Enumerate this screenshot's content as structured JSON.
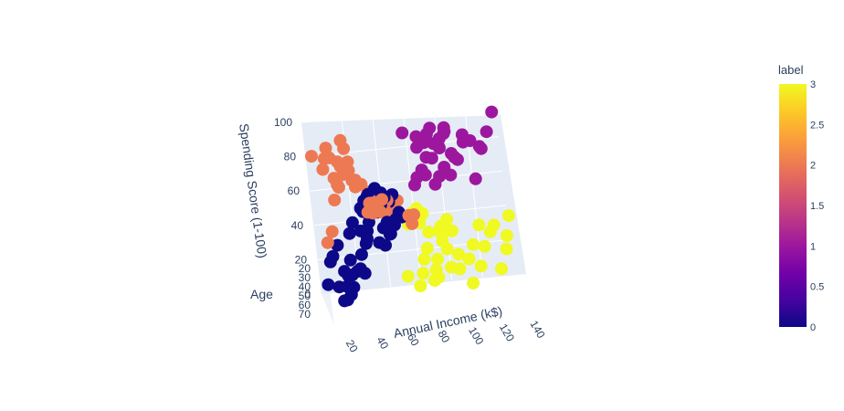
{
  "chart_data": {
    "type": "scatter",
    "title": "",
    "axes": {
      "x": {
        "label": "Annual Income (k$)",
        "ticks": [
          "20",
          "40",
          "60",
          "80",
          "100",
          "120",
          "140"
        ],
        "range": [
          15,
          140
        ]
      },
      "y": {
        "label": "Spending Score (1-100)",
        "ticks": [
          "0",
          "20",
          "40",
          "60",
          "80",
          "100"
        ],
        "range": [
          0,
          100
        ]
      },
      "z": {
        "label": "Age",
        "ticks": [
          "20",
          "30",
          "40",
          "50",
          "60",
          "70"
        ],
        "range": [
          18,
          70
        ]
      }
    },
    "colorbar": {
      "title": "label",
      "ticks": [
        "0",
        "0.5",
        "1",
        "1.5",
        "2",
        "2.5",
        "3"
      ],
      "range": [
        0,
        3
      ],
      "colors": [
        "#0d0887",
        "#46039f",
        "#7201a8",
        "#9c179e",
        "#bd3786",
        "#d8576b",
        "#ed7953",
        "#fb9f3a",
        "#fdca26",
        "#f0f921"
      ]
    },
    "series": [
      {
        "label": 0,
        "color": "#0d0887",
        "points": [
          [
            20,
            5
          ],
          [
            25,
            8
          ],
          [
            28,
            15
          ],
          [
            30,
            20
          ],
          [
            33,
            12
          ],
          [
            22,
            30
          ],
          [
            26,
            35
          ],
          [
            35,
            40
          ],
          [
            38,
            45
          ],
          [
            42,
            25
          ],
          [
            46,
            30
          ],
          [
            48,
            36
          ],
          [
            50,
            40
          ],
          [
            52,
            44
          ],
          [
            55,
            48
          ],
          [
            58,
            50
          ],
          [
            60,
            42
          ],
          [
            62,
            46
          ],
          [
            65,
            48
          ],
          [
            54,
            52
          ],
          [
            57,
            55
          ],
          [
            60,
            58
          ],
          [
            63,
            54
          ],
          [
            66,
            57
          ],
          [
            45,
            50
          ],
          [
            48,
            53
          ],
          [
            51,
            55
          ],
          [
            40,
            48
          ],
          [
            44,
            42
          ],
          [
            52,
            38
          ],
          [
            56,
            35
          ],
          [
            60,
            40
          ],
          [
            64,
            44
          ],
          [
            68,
            50
          ],
          [
            70,
            46
          ],
          [
            50,
            60
          ],
          [
            55,
            62
          ],
          [
            59,
            58
          ],
          [
            62,
            52
          ],
          [
            47,
            46
          ],
          [
            23,
            18
          ],
          [
            27,
            25
          ],
          [
            32,
            30
          ],
          [
            36,
            22
          ],
          [
            31,
            8
          ],
          [
            24,
            12
          ],
          [
            29,
            3
          ],
          [
            34,
            16
          ],
          [
            40,
            18
          ],
          [
            43,
            14
          ]
        ]
      },
      {
        "label": 1,
        "color": "#9c179e",
        "points": [
          [
            78,
            88
          ],
          [
            82,
            92
          ],
          [
            86,
            95
          ],
          [
            90,
            97
          ],
          [
            94,
            90
          ],
          [
            98,
            86
          ],
          [
            102,
            93
          ],
          [
            106,
            80
          ],
          [
            110,
            75
          ],
          [
            115,
            88
          ],
          [
            120,
            83
          ],
          [
            126,
            78
          ],
          [
            132,
            85
          ],
          [
            137,
            95
          ],
          [
            80,
            75
          ],
          [
            84,
            78
          ],
          [
            88,
            84
          ],
          [
            92,
            82
          ],
          [
            96,
            70
          ],
          [
            100,
            74
          ],
          [
            104,
            68
          ],
          [
            108,
            77
          ],
          [
            85,
            90
          ],
          [
            90,
            85
          ],
          [
            95,
            92
          ],
          [
            100,
            80
          ],
          [
            105,
            87
          ],
          [
            112,
            93
          ],
          [
            118,
            70
          ],
          [
            124,
            86
          ],
          [
            79,
            68
          ],
          [
            87,
            72
          ],
          [
            93,
            65
          ],
          [
            99,
            90
          ],
          [
            103,
            95
          ]
        ]
      },
      {
        "label": 2,
        "color": "#ed7953",
        "points": [
          [
            18,
            80
          ],
          [
            20,
            85
          ],
          [
            22,
            90
          ],
          [
            24,
            95
          ],
          [
            26,
            88
          ],
          [
            28,
            75
          ],
          [
            30,
            70
          ],
          [
            32,
            82
          ],
          [
            34,
            78
          ],
          [
            36,
            92
          ],
          [
            38,
            86
          ],
          [
            40,
            72
          ],
          [
            42,
            65
          ],
          [
            44,
            60
          ],
          [
            46,
            58
          ],
          [
            48,
            62
          ],
          [
            50,
            55
          ],
          [
            52,
            60
          ],
          [
            54,
            56
          ],
          [
            56,
            52
          ],
          [
            58,
            58
          ],
          [
            60,
            50
          ],
          [
            62,
            55
          ],
          [
            64,
            48
          ],
          [
            66,
            52
          ],
          [
            68,
            46
          ],
          [
            70,
            50
          ],
          [
            72,
            54
          ],
          [
            74,
            48
          ],
          [
            76,
            52
          ],
          [
            19,
            40
          ],
          [
            23,
            45
          ],
          [
            27,
            62
          ],
          [
            31,
            68
          ],
          [
            35,
            74
          ],
          [
            39,
            80
          ],
          [
            43,
            68
          ],
          [
            47,
            64
          ],
          [
            51,
            58
          ],
          [
            55,
            50
          ]
        ]
      },
      {
        "label": 3,
        "color": "#f0f921",
        "points": [
          [
            72,
            5
          ],
          [
            75,
            12
          ],
          [
            78,
            18
          ],
          [
            80,
            25
          ],
          [
            83,
            30
          ],
          [
            86,
            10
          ],
          [
            88,
            15
          ],
          [
            90,
            20
          ],
          [
            93,
            35
          ],
          [
            95,
            28
          ],
          [
            98,
            22
          ],
          [
            100,
            38
          ],
          [
            103,
            30
          ],
          [
            106,
            15
          ],
          [
            108,
            25
          ],
          [
            112,
            32
          ],
          [
            116,
            18
          ],
          [
            120,
            28
          ],
          [
            125,
            35
          ],
          [
            130,
            12
          ],
          [
            135,
            22
          ],
          [
            139,
            40
          ],
          [
            74,
            40
          ],
          [
            77,
            45
          ],
          [
            82,
            38
          ],
          [
            85,
            42
          ],
          [
            88,
            30
          ],
          [
            92,
            46
          ],
          [
            96,
            42
          ],
          [
            102,
            18
          ],
          [
            110,
            8
          ],
          [
            118,
            40
          ],
          [
            128,
            38
          ],
          [
            136,
            30
          ],
          [
            80,
            50
          ],
          [
            90,
            8
          ],
          [
            99,
            12
          ]
        ]
      }
    ]
  }
}
